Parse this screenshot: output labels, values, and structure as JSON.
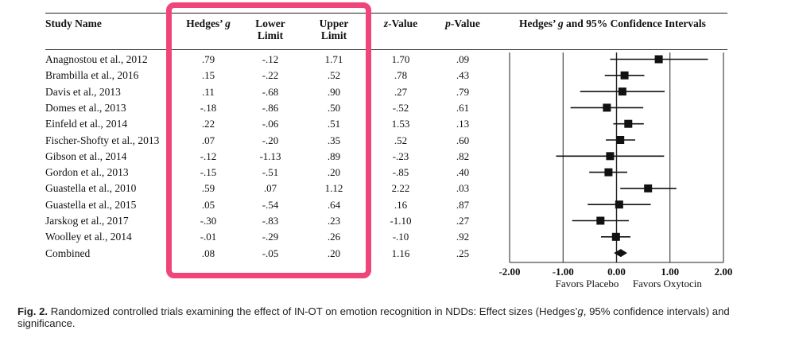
{
  "headers": {
    "study": "Study Name",
    "g_main": "Hedges’",
    "g_ital": "g",
    "lower": [
      "Lower",
      "Limit"
    ],
    "upper": [
      "Upper",
      "Limit"
    ],
    "z_ital": "z",
    "z_rest": "-Value",
    "p_ital": "p",
    "p_rest": "-Value",
    "ci_pre": "Hedges’ ",
    "ci_ital": "g",
    "ci_post": " and 95% Confidence Intervals"
  },
  "rows": [
    {
      "study": "Anagnostou et al., 2012",
      "g": ".79",
      "lower": "-.12",
      "upper": "1.71",
      "z": "1.70",
      "p": ".09"
    },
    {
      "study": "Brambilla et al., 2016",
      "g": ".15",
      "lower": "-.22",
      "upper": ".52",
      "z": ".78",
      "p": ".43"
    },
    {
      "study": "Davis et al., 2013",
      "g": ".11",
      "lower": "-.68",
      "upper": ".90",
      "z": ".27",
      "p": ".79"
    },
    {
      "study": "Domes et al., 2013",
      "g": "-.18",
      "lower": "-.86",
      "upper": ".50",
      "z": "-.52",
      "p": ".61"
    },
    {
      "study": "Einfeld et al., 2014",
      "g": ".22",
      "lower": "-.06",
      "upper": ".51",
      "z": "1.53",
      "p": ".13"
    },
    {
      "study": "Fischer-Shofty et al., 2013",
      "g": ".07",
      "lower": "-.20",
      "upper": ".35",
      "z": ".52",
      "p": ".60"
    },
    {
      "study": "Gibson et al., 2014",
      "g": "-.12",
      "lower": "-1.13",
      "upper": ".89",
      "z": "-.23",
      "p": ".82"
    },
    {
      "study": "Gordon et al., 2013",
      "g": "-.15",
      "lower": "-.51",
      "upper": ".20",
      "z": "-.85",
      "p": ".40"
    },
    {
      "study": "Guastella et al., 2010",
      "g": ".59",
      "lower": ".07",
      "upper": "1.12",
      "z": "2.22",
      "p": ".03"
    },
    {
      "study": "Guastella et al., 2015",
      "g": ".05",
      "lower": "-.54",
      "upper": ".64",
      "z": ".16",
      "p": ".87"
    },
    {
      "study": "Jarskog et al., 2017",
      "g": "-.30",
      "lower": "-.83",
      "upper": ".23",
      "z": "-1.10",
      "p": ".27"
    },
    {
      "study": "Woolley et al., 2014",
      "g": "-.01",
      "lower": "-.29",
      "upper": ".26",
      "z": "-.10",
      "p": ".92"
    },
    {
      "study": "Combined",
      "g": ".08",
      "lower": "-.05",
      "upper": ".20",
      "z": "1.16",
      "p": ".25"
    }
  ],
  "chart_data": {
    "type": "forest",
    "title": "Hedges’ g and 95% Confidence Intervals",
    "xlim": [
      -2.0,
      2.0
    ],
    "ticks": [
      "-2.00",
      "-1.00",
      "0.00",
      "1.00",
      "2.00"
    ],
    "tick_values": [
      -2,
      -1,
      0,
      1,
      2
    ],
    "left_label": "Favors Placebo",
    "right_label": "Favors Oxytocin",
    "series": [
      {
        "study": "Anagnostou et al., 2012",
        "g": 0.79,
        "lower": -0.12,
        "upper": 1.71
      },
      {
        "study": "Brambilla et al., 2016",
        "g": 0.15,
        "lower": -0.22,
        "upper": 0.52
      },
      {
        "study": "Davis et al., 2013",
        "g": 0.11,
        "lower": -0.68,
        "upper": 0.9
      },
      {
        "study": "Domes et al., 2013",
        "g": -0.18,
        "lower": -0.86,
        "upper": 0.5
      },
      {
        "study": "Einfeld et al., 2014",
        "g": 0.22,
        "lower": -0.06,
        "upper": 0.51
      },
      {
        "study": "Fischer-Shofty et al., 2013",
        "g": 0.07,
        "lower": -0.2,
        "upper": 0.35
      },
      {
        "study": "Gibson et al., 2014",
        "g": -0.12,
        "lower": -1.13,
        "upper": 0.89
      },
      {
        "study": "Gordon et al., 2013",
        "g": -0.15,
        "lower": -0.51,
        "upper": 0.2
      },
      {
        "study": "Guastella et al., 2010",
        "g": 0.59,
        "lower": 0.07,
        "upper": 1.12
      },
      {
        "study": "Guastella et al., 2015",
        "g": 0.05,
        "lower": -0.54,
        "upper": 0.64
      },
      {
        "study": "Jarskog et al., 2017",
        "g": -0.3,
        "lower": -0.83,
        "upper": 0.23
      },
      {
        "study": "Woolley et al., 2014",
        "g": -0.01,
        "lower": -0.29,
        "upper": 0.26
      },
      {
        "study": "Combined",
        "g": 0.08,
        "lower": -0.05,
        "upper": 0.2,
        "summary": true
      }
    ]
  },
  "caption": {
    "label": "Fig. 2.",
    "text_a": " Randomized controlled trials examining the effect of IN-OT on emotion recognition in NDDs: Effect sizes (Hedges’",
    "text_ital": "g",
    "text_b": ", 95% confidence intervals) and significance."
  },
  "highlight_color": "#f0457a"
}
